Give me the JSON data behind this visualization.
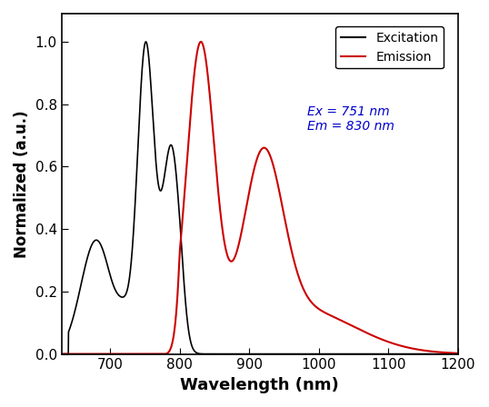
{
  "title": "",
  "xlabel": "Wavelength (nm)",
  "ylabel": "Normalized (a.u.)",
  "xlim": [
    630,
    1200
  ],
  "ylim": [
    0.0,
    1.09
  ],
  "xticks": [
    700,
    800,
    900,
    1000,
    1100,
    1200
  ],
  "yticks": [
    0.0,
    0.2,
    0.4,
    0.6,
    0.8,
    1.0
  ],
  "excitation_color": "#000000",
  "emission_color": "#cc0000",
  "annotation_text": "Ex = 751 nm\nEm = 830 nm",
  "annotation_color": "#0000cc",
  "legend_labels": [
    "Excitation",
    "Emission"
  ],
  "legend_colors": [
    "#000000",
    "#cc0000"
  ]
}
